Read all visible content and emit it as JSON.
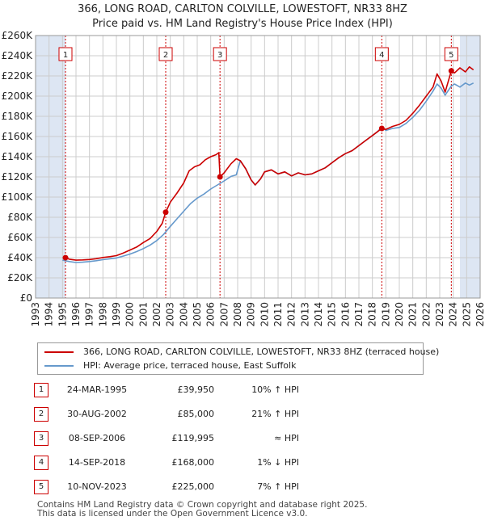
{
  "title_line1": "366, LONG ROAD, CARLTON COLVILLE, LOWESTOFT, NR33 8HZ",
  "title_line2": "Price paid vs. HM Land Registry's House Price Index (HPI)",
  "legend": {
    "property": "366, LONG ROAD, CARLTON COLVILLE, LOWESTOFT, NR33 8HZ (terraced house)",
    "hpi": "HPI: Average price, terraced house, East Suffolk"
  },
  "colors": {
    "property": "#cc0000",
    "hpi": "#6699cc",
    "shade": "#dde6f3",
    "grid": "#cccccc"
  },
  "sales": [
    {
      "num": "1",
      "date": "24-MAR-1995",
      "price": "£39,950",
      "hpi": "10% ↑ HPI"
    },
    {
      "num": "2",
      "date": "30-AUG-2002",
      "price": "£85,000",
      "hpi": "21% ↑ HPI"
    },
    {
      "num": "3",
      "date": "08-SEP-2006",
      "price": "£119,995",
      "hpi": "≈ HPI"
    },
    {
      "num": "4",
      "date": "14-SEP-2018",
      "price": "£168,000",
      "hpi": "1% ↓ HPI"
    },
    {
      "num": "5",
      "date": "10-NOV-2023",
      "price": "£225,000",
      "hpi": "7% ↑ HPI"
    }
  ],
  "footer": {
    "line1": "Contains HM Land Registry data © Crown copyright and database right 2025.",
    "line2": "This data is licensed under the Open Government Licence v3.0."
  },
  "chart_data": {
    "type": "line",
    "title": "366, LONG ROAD, CARLTON COLVILLE, LOWESTOFT, NR33 8HZ",
    "subtitle": "Price paid vs. HM Land Registry's House Price Index (HPI)",
    "xlim": [
      1993,
      2026
    ],
    "ylim": [
      0,
      260000
    ],
    "x_ticks": [
      "1993",
      "1994",
      "1995",
      "1996",
      "1997",
      "1998",
      "1999",
      "2000",
      "2001",
      "2002",
      "2003",
      "2004",
      "2005",
      "2006",
      "2007",
      "2008",
      "2009",
      "2010",
      "2011",
      "2012",
      "2013",
      "2014",
      "2015",
      "2016",
      "2017",
      "2018",
      "2019",
      "2020",
      "2021",
      "2022",
      "2023",
      "2024",
      "2025",
      "2026"
    ],
    "y_ticks": [
      {
        "value": 0,
        "label": "£0"
      },
      {
        "value": 20000,
        "label": "£20K"
      },
      {
        "value": 40000,
        "label": "£40K"
      },
      {
        "value": 60000,
        "label": "£60K"
      },
      {
        "value": 80000,
        "label": "£80K"
      },
      {
        "value": 100000,
        "label": "£100K"
      },
      {
        "value": 120000,
        "label": "£120K"
      },
      {
        "value": 140000,
        "label": "£140K"
      },
      {
        "value": 160000,
        "label": "£160K"
      },
      {
        "value": 180000,
        "label": "£180K"
      },
      {
        "value": 200000,
        "label": "£200K"
      },
      {
        "value": 220000,
        "label": "£220K"
      },
      {
        "value": 240000,
        "label": "£240K"
      },
      {
        "value": 260000,
        "label": "£260K"
      }
    ],
    "grid": true,
    "shaded_ranges": [
      [
        1993,
        1995.22
      ],
      [
        2024.5,
        2026
      ]
    ],
    "sale_points": [
      {
        "label": "1",
        "x": 1995.22,
        "y": 39950
      },
      {
        "label": "2",
        "x": 2002.66,
        "y": 85000
      },
      {
        "label": "3",
        "x": 2006.69,
        "y": 119995
      },
      {
        "label": "4",
        "x": 2018.7,
        "y": 168000
      },
      {
        "label": "5",
        "x": 2023.86,
        "y": 225000
      }
    ],
    "series": [
      {
        "name": "366, LONG ROAD, CARLTON COLVILLE, LOWESTOFT, NR33 8HZ (terraced house)",
        "color": "#cc0000",
        "points": [
          [
            1995.22,
            39950
          ],
          [
            1995.5,
            38500
          ],
          [
            1996,
            37500
          ],
          [
            1996.5,
            37800
          ],
          [
            1997,
            38200
          ],
          [
            1997.5,
            39000
          ],
          [
            1998,
            40200
          ],
          [
            1998.5,
            41000
          ],
          [
            1999,
            42000
          ],
          [
            1999.5,
            44500
          ],
          [
            2000,
            47500
          ],
          [
            2000.5,
            50500
          ],
          [
            2001,
            55000
          ],
          [
            2001.5,
            59000
          ],
          [
            2002,
            66000
          ],
          [
            2002.4,
            74000
          ],
          [
            2002.66,
            85000
          ],
          [
            2003,
            95000
          ],
          [
            2003.5,
            104000
          ],
          [
            2004,
            114000
          ],
          [
            2004.4,
            126000
          ],
          [
            2004.8,
            130000
          ],
          [
            2005.2,
            132000
          ],
          [
            2005.6,
            137000
          ],
          [
            2006,
            140000
          ],
          [
            2006.4,
            142000
          ],
          [
            2006.6,
            144000
          ],
          [
            2006.69,
            119995
          ],
          [
            2007,
            124000
          ],
          [
            2007.5,
            133000
          ],
          [
            2007.9,
            138000
          ],
          [
            2008.2,
            136000
          ],
          [
            2008.6,
            128000
          ],
          [
            2009,
            117000
          ],
          [
            2009.3,
            112000
          ],
          [
            2009.7,
            118000
          ],
          [
            2010,
            125000
          ],
          [
            2010.5,
            127000
          ],
          [
            2011,
            123000
          ],
          [
            2011.5,
            125000
          ],
          [
            2012,
            121000
          ],
          [
            2012.5,
            124000
          ],
          [
            2013,
            122000
          ],
          [
            2013.5,
            123000
          ],
          [
            2014,
            126000
          ],
          [
            2014.5,
            129000
          ],
          [
            2015,
            134000
          ],
          [
            2015.5,
            139000
          ],
          [
            2016,
            143000
          ],
          [
            2016.5,
            146000
          ],
          [
            2017,
            151000
          ],
          [
            2017.5,
            156000
          ],
          [
            2018,
            161000
          ],
          [
            2018.4,
            165000
          ],
          [
            2018.7,
            168000
          ],
          [
            2019,
            167000
          ],
          [
            2019.5,
            170000
          ],
          [
            2020,
            172000
          ],
          [
            2020.5,
            176000
          ],
          [
            2021,
            183000
          ],
          [
            2021.5,
            191000
          ],
          [
            2022,
            200000
          ],
          [
            2022.5,
            209000
          ],
          [
            2022.8,
            222000
          ],
          [
            2023.1,
            215000
          ],
          [
            2023.4,
            204000
          ],
          [
            2023.86,
            225000
          ],
          [
            2024.1,
            223000
          ],
          [
            2024.5,
            228000
          ],
          [
            2024.9,
            224000
          ],
          [
            2025.2,
            229000
          ],
          [
            2025.5,
            226000
          ]
        ]
      },
      {
        "name": "HPI: Average price, terraced house, East Suffolk",
        "color": "#6699cc",
        "points": [
          [
            1995,
            37500
          ],
          [
            1995.5,
            36200
          ],
          [
            1996,
            35200
          ],
          [
            1996.5,
            35500
          ],
          [
            1997,
            36200
          ],
          [
            1997.5,
            37000
          ],
          [
            1998,
            38000
          ],
          [
            1998.5,
            38800
          ],
          [
            1999,
            39700
          ],
          [
            1999.5,
            41500
          ],
          [
            2000,
            43500
          ],
          [
            2000.5,
            46000
          ],
          [
            2001,
            49000
          ],
          [
            2001.5,
            52500
          ],
          [
            2002,
            57000
          ],
          [
            2002.5,
            63000
          ],
          [
            2003,
            71000
          ],
          [
            2003.5,
            78500
          ],
          [
            2004,
            86000
          ],
          [
            2004.5,
            93500
          ],
          [
            2005,
            99000
          ],
          [
            2005.5,
            103000
          ],
          [
            2006,
            108000
          ],
          [
            2006.5,
            112000
          ],
          [
            2007,
            116000
          ],
          [
            2007.5,
            120500
          ],
          [
            2007.9,
            122000
          ],
          [
            2008.2,
            136000
          ],
          [
            2008.6,
            128000
          ],
          [
            2009,
            117000
          ],
          [
            2009.3,
            112000
          ],
          [
            2009.7,
            118000
          ],
          [
            2010,
            125000
          ],
          [
            2010.5,
            127000
          ],
          [
            2011,
            123000
          ],
          [
            2011.5,
            125000
          ],
          [
            2012,
            121000
          ],
          [
            2012.5,
            124000
          ],
          [
            2013,
            122000
          ],
          [
            2013.5,
            123000
          ],
          [
            2014,
            126000
          ],
          [
            2014.5,
            129000
          ],
          [
            2015,
            134000
          ],
          [
            2015.5,
            139000
          ],
          [
            2016,
            143000
          ],
          [
            2016.5,
            146000
          ],
          [
            2017,
            151000
          ],
          [
            2017.5,
            156000
          ],
          [
            2018,
            161000
          ],
          [
            2018.4,
            165000
          ],
          [
            2018.7,
            169500
          ],
          [
            2019,
            166000
          ],
          [
            2019.5,
            168000
          ],
          [
            2020,
            169000
          ],
          [
            2020.5,
            173000
          ],
          [
            2021,
            179000
          ],
          [
            2021.5,
            186000
          ],
          [
            2022,
            195000
          ],
          [
            2022.5,
            205000
          ],
          [
            2022.8,
            212000
          ],
          [
            2023.1,
            208000
          ],
          [
            2023.4,
            201000
          ],
          [
            2023.86,
            210000
          ],
          [
            2024.1,
            212000
          ],
          [
            2024.5,
            209000
          ],
          [
            2024.9,
            213000
          ],
          [
            2025.2,
            211000
          ],
          [
            2025.5,
            213000
          ]
        ]
      }
    ]
  }
}
